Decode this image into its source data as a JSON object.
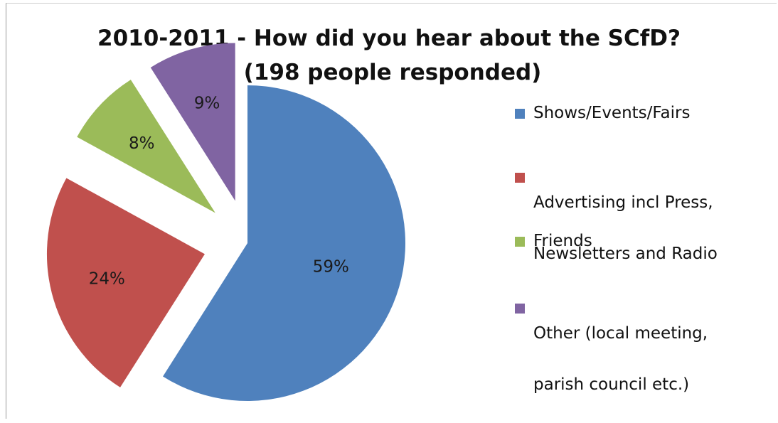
{
  "chart_data": {
    "type": "pie",
    "exploded": true,
    "title_lines": [
      "2010-2011  -  How did you hear about the SCfD?",
      "(198 people responded)"
    ],
    "slices": [
      {
        "label": "Shows/Events/Fairs",
        "value": 59,
        "data_label": "59%",
        "color": "#4f81bd"
      },
      {
        "label": "Advertising incl Press, Newsletters and Radio",
        "legend_lines": [
          "Advertising incl Press,",
          "Newsletters and Radio"
        ],
        "value": 24,
        "data_label": "24%",
        "color": "#c0504d"
      },
      {
        "label": "Friends",
        "value": 8,
        "data_label": "8%",
        "color": "#9bbb59"
      },
      {
        "label": "Other (local meeting, parish council etc.)",
        "legend_lines": [
          "Other (local meeting,",
          "parish council etc.)"
        ],
        "value": 9,
        "data_label": "9%",
        "color": "#8064a2"
      }
    ],
    "legend_position": "right"
  }
}
